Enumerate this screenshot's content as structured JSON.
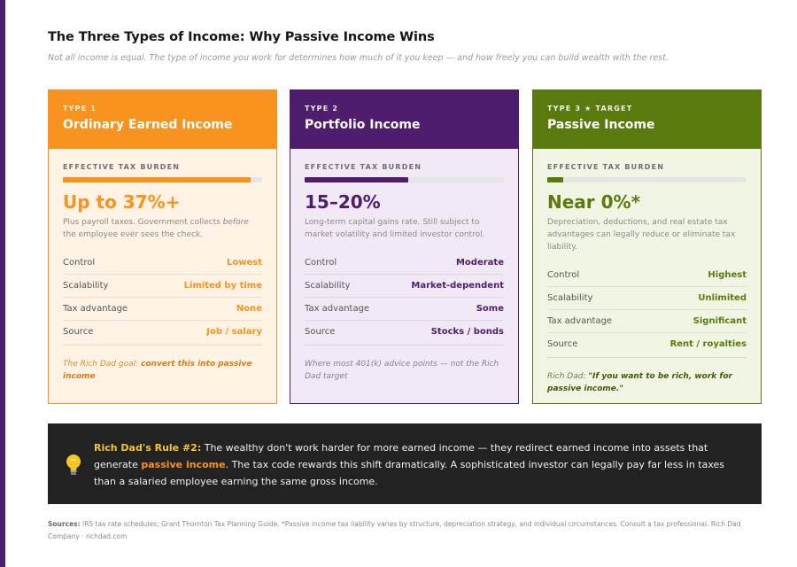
{
  "header": {
    "title": "The Three Types of Income: Why Passive Income Wins",
    "subtitle": "Not all income is equal. The type of income you work for determines how much of it you keep — and how freely you can build wealth with the rest."
  },
  "colors": {
    "earned": "#f7931e",
    "portfolio": "#4e1d6e",
    "passive": "#5b7a0e",
    "rule_background": "#222222"
  },
  "cards": [
    {
      "type_label": "TYPE 1",
      "title": "Ordinary Earned Income",
      "burden_label": "EFFECTIVE TAX BURDEN",
      "burden_fill_pct": 94,
      "tax_value": "Up to 37%+",
      "tax_desc_1": "Plus payroll taxes. Government collects ",
      "tax_desc_em": "before",
      "tax_desc_2": " the employee ever sees the check.",
      "rows": [
        {
          "label": "Control",
          "value": "Lowest"
        },
        {
          "label": "Scalability",
          "value": "Limited by time"
        },
        {
          "label": "Tax advantage",
          "value": "None"
        },
        {
          "label": "Source",
          "value": "Job / salary"
        }
      ],
      "note_pre": "The Rich Dad goal: ",
      "note_bold": "convert this into passive income"
    },
    {
      "type_label": "TYPE 2",
      "title": "Portfolio Income",
      "burden_label": "EFFECTIVE TAX BURDEN",
      "burden_fill_pct": 52,
      "tax_value": "15–20%",
      "tax_desc": "Long-term capital gains rate. Still subject to market volatility and limited investor control.",
      "rows": [
        {
          "label": "Control",
          "value": "Moderate"
        },
        {
          "label": "Scalability",
          "value": "Market-dependent"
        },
        {
          "label": "Tax advantage",
          "value": "Some"
        },
        {
          "label": "Source",
          "value": "Stocks / bonds"
        }
      ],
      "note": "Where most 401(k) advice points — not the Rich Dad target"
    },
    {
      "type_label": "TYPE 3 ★ TARGET",
      "title": "Passive Income",
      "burden_label": "EFFECTIVE TAX BURDEN",
      "burden_fill_pct": 8,
      "tax_value": "Near 0%*",
      "tax_desc": "Depreciation, deductions, and real estate tax advantages can legally reduce or eliminate tax liability.",
      "rows": [
        {
          "label": "Control",
          "value": "Highest"
        },
        {
          "label": "Scalability",
          "value": "Unlimited"
        },
        {
          "label": "Tax advantage",
          "value": "Significant"
        },
        {
          "label": "Source",
          "value": "Rent / royalties"
        }
      ],
      "note_pre": "Rich Dad: ",
      "note_bold": "\"If you want to be rich, work for passive income.\""
    }
  ],
  "rule": {
    "icon": "lightbulb-icon",
    "lead": "Rich Dad's Rule #2:",
    "text_1": " The wealthy don't work harder for more earned income — they redirect earned income into assets that generate ",
    "highlight": "passive income",
    "text_2": ". The tax code rewards this shift dramatically. A sophisticated investor can legally pay far less in taxes than a salaried employee earning the same gross income."
  },
  "sources": {
    "label": "Sources:",
    "text": " IRS tax rate schedules; Grant Thornton Tax Planning Guide. *Passive income tax liability varies by structure, depreciation strategy, and individual circumstances. Consult a tax professional. Rich Dad Company · richdad.com"
  }
}
